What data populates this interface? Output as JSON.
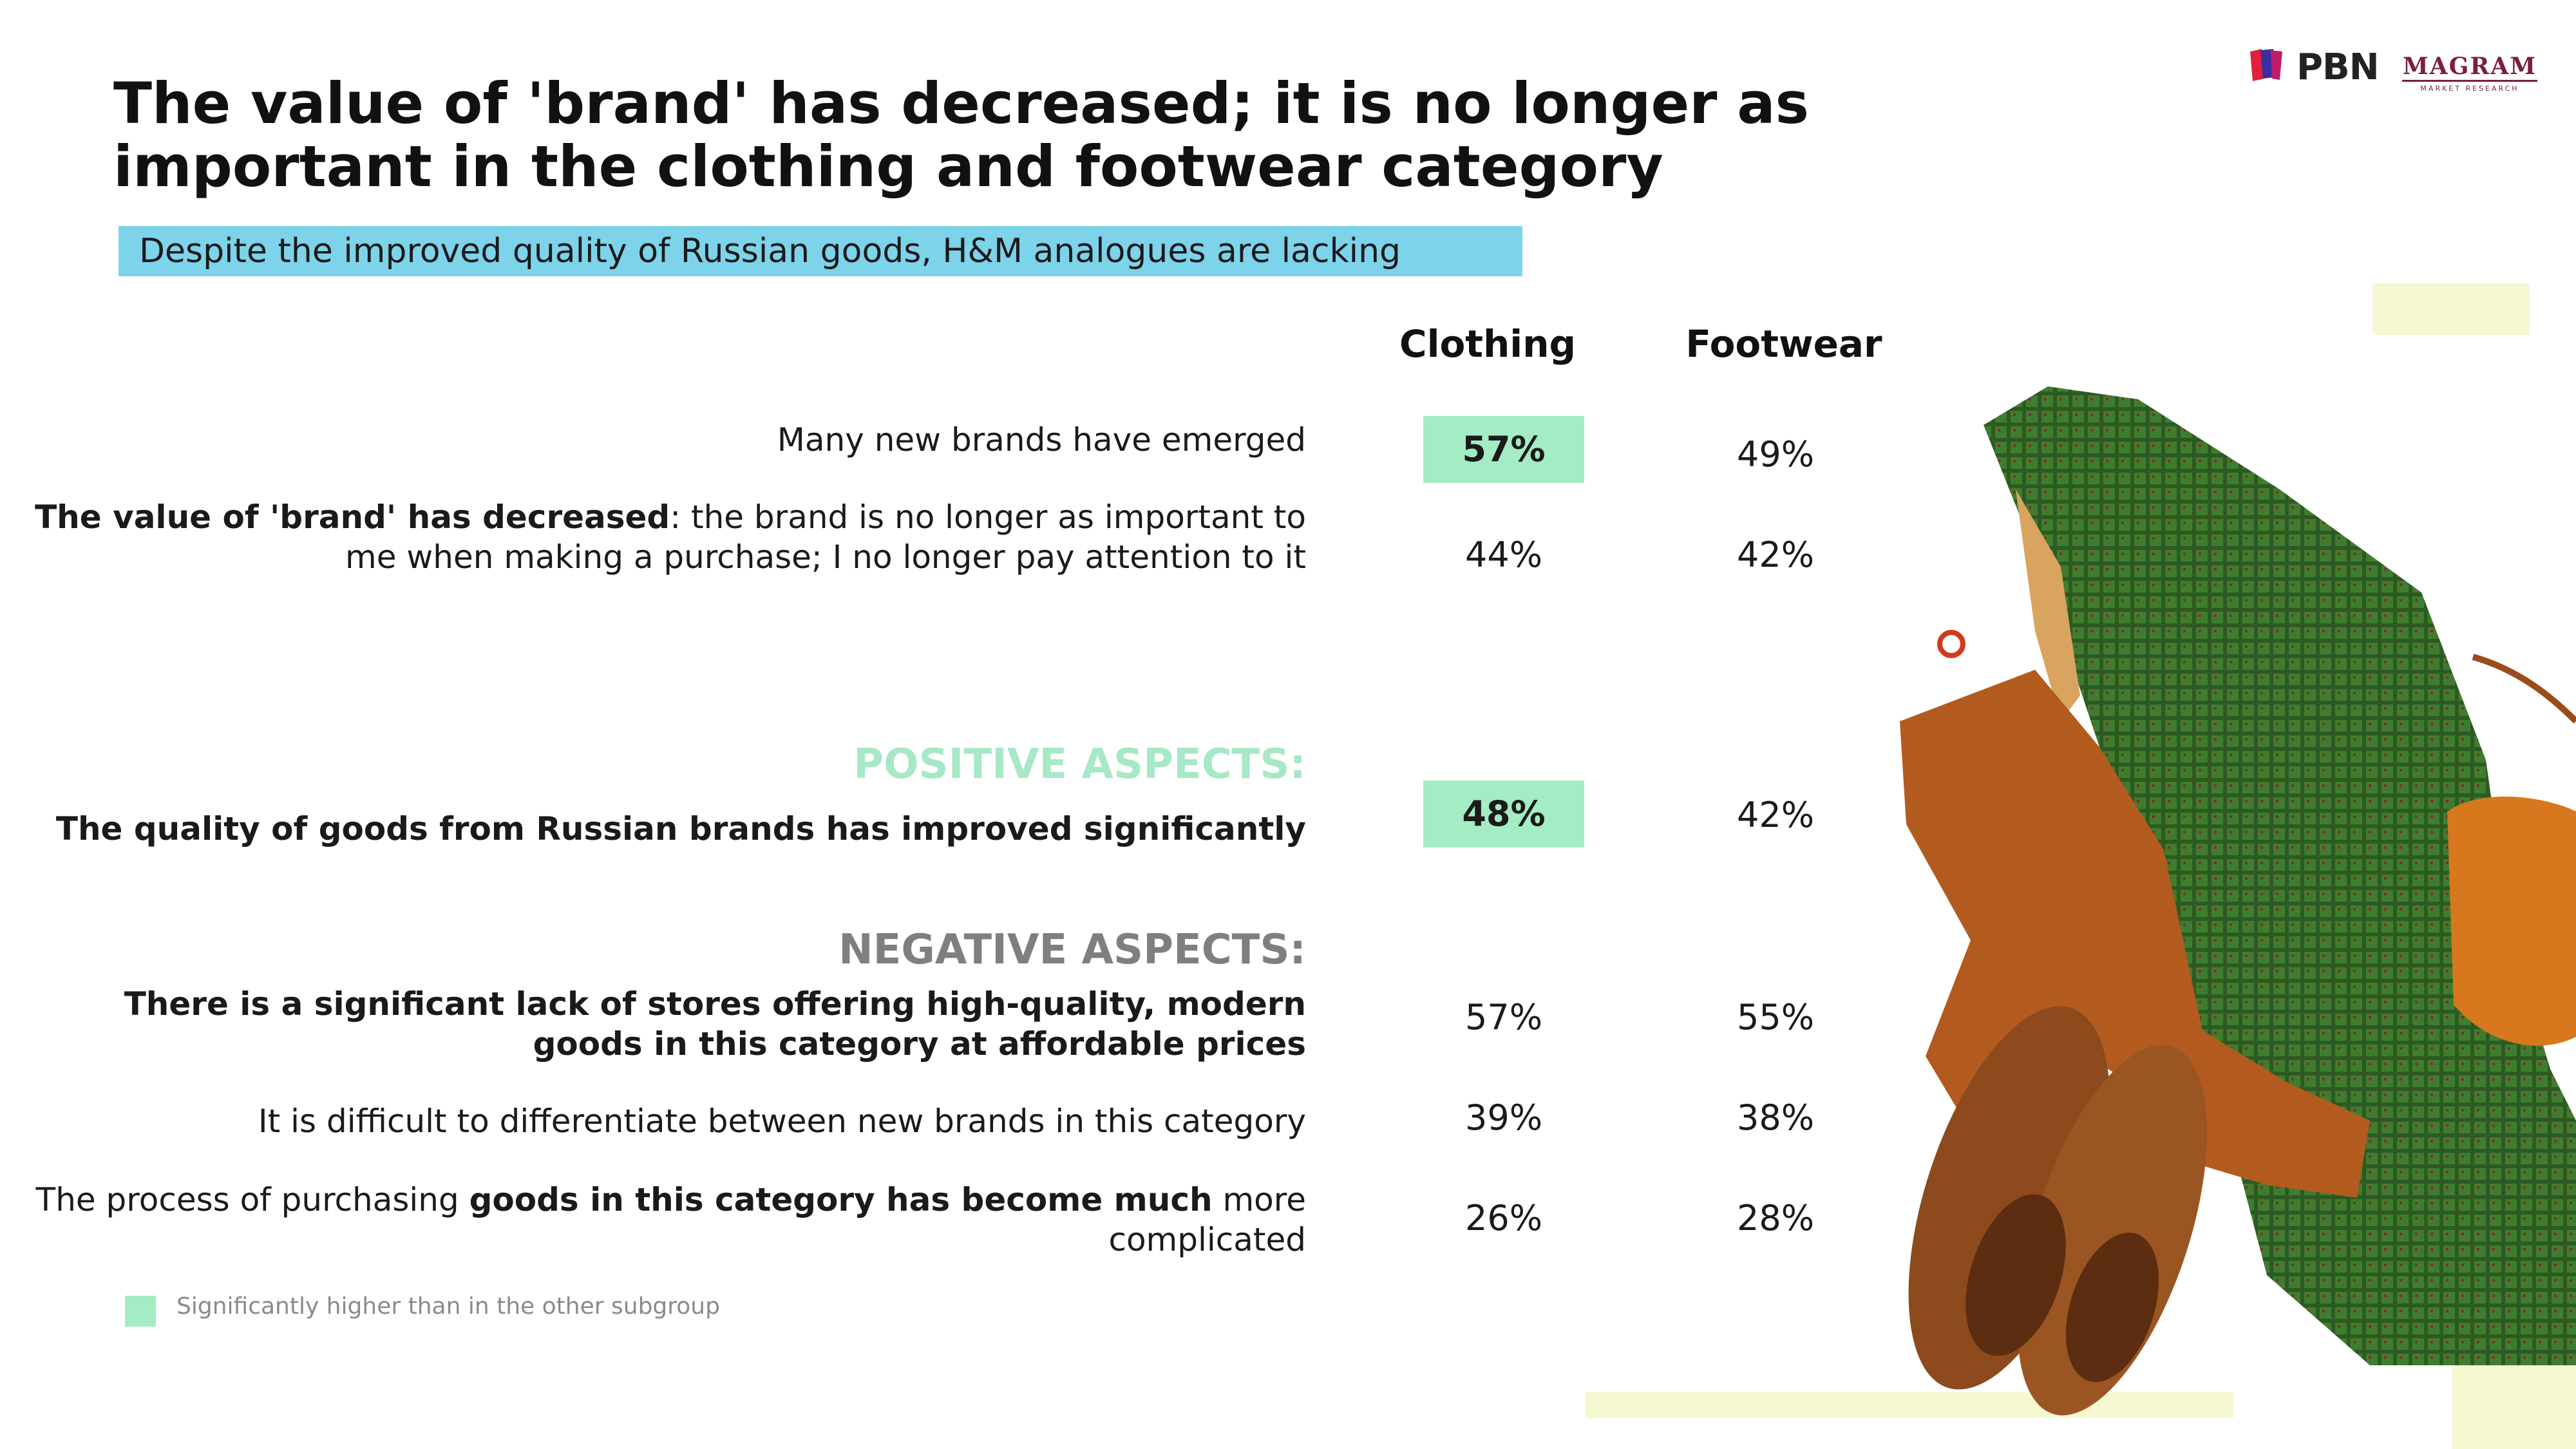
{
  "title": "The value of 'brand' has decreased; it is no longer as important in the clothing and footwear category",
  "subtitle": "Despite the improved quality of Russian goods, H&M analogues are lacking",
  "logos": {
    "pbn": "PBN",
    "magram": "MAGRAM",
    "magram_sub": "MARKET RESEARCH"
  },
  "columns": {
    "clothing": "Clothing",
    "footwear": "Footwear"
  },
  "rows": [
    {
      "label": "Many new brands have emerged",
      "clothing": "57%",
      "footwear": "49%",
      "clothing_highlight": true
    },
    {
      "label_bold": "The value of 'brand' has decreased",
      "label_rest": ": the brand is no longer as important to me when making a purchase; I no longer pay attention to it",
      "clothing": "44%",
      "footwear": "42%"
    },
    {
      "label": "The quality of goods from Russian brands has improved significantly",
      "clothing": "48%",
      "footwear": "42%",
      "clothing_highlight": true
    },
    {
      "label": "There is a significant lack of stores offering high-quality, modern goods in this category at affordable prices",
      "clothing": "57%",
      "footwear": "55%"
    },
    {
      "label": "It is difficult to differentiate between new brands in this category",
      "clothing": "39%",
      "footwear": "38%"
    },
    {
      "label_pre": "The process of purchasing ",
      "label_bold": "goods in this category has become much",
      "label_post": " more complicated",
      "clothing": "26%",
      "footwear": "28%"
    }
  ],
  "sections": {
    "positive": "POSITIVE ASPECTS:",
    "negative": "NEGATIVE ASPECTS:"
  },
  "legend": {
    "text": "Significantly higher than in the other subgroup",
    "color": "#a4ecc4"
  },
  "colors": {
    "subtitle_bar": "#7dd3ea",
    "highlight": "#a4ecc4",
    "positive": "#a7e8c6",
    "negative": "#7f7f7f",
    "deco": "#f6f8d2"
  }
}
